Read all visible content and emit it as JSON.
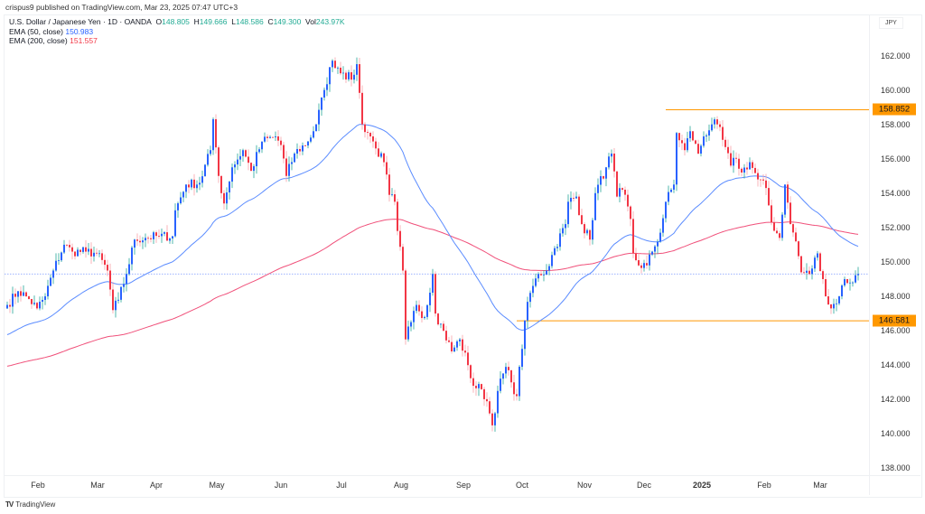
{
  "header": {
    "published": "crispus9 published on TradingView.com, Mar 23, 2025 07:47 UTC+3"
  },
  "legend": {
    "symbol": "U.S. Dollar / Japanese Yen · 1D · OANDA",
    "o_label": "O",
    "o": "148.805",
    "h_label": "H",
    "h": "149.666",
    "l_label": "L",
    "l": "148.586",
    "c_label": "C",
    "c": "149.300",
    "vol_label": "Vol",
    "vol": "243.97K",
    "ema50_label": "EMA (50, close)",
    "ema50": "150.983",
    "ema200_label": "EMA (200, close)",
    "ema200": "151.557"
  },
  "currency": "JPY",
  "brand": "TradingView",
  "colors": {
    "up": "#2962ff",
    "up_wick": "#26a69a",
    "down": "#f23645",
    "down_wick": "#f7a1a9",
    "ema50": "#5b8cff",
    "ema200": "#f0507a",
    "level": "#ff9800"
  },
  "chart_data": {
    "type": "candlestick",
    "title": "U.S. Dollar / Japanese Yen · 1D · OANDA",
    "ylim": [
      137,
      163.5
    ],
    "yticks": [
      "162.000",
      "160.000",
      "158.000",
      "156.000",
      "154.000",
      "152.000",
      "150.000",
      "148.000",
      "146.000",
      "144.000",
      "142.000",
      "140.000",
      "138.000"
    ],
    "ytick_values": [
      162,
      160,
      158,
      156,
      154,
      152,
      150,
      148,
      146,
      144,
      142,
      140,
      138
    ],
    "xticks": [
      "Feb",
      "Mar",
      "Apr",
      "May",
      "Jun",
      "Jul",
      "Aug",
      "Sep",
      "Oct",
      "Nov",
      "Dec",
      "2025",
      "Feb",
      "Mar"
    ],
    "bar_count": 315,
    "close_anchors": [
      [
        0,
        147.5
      ],
      [
        4,
        148.3
      ],
      [
        7,
        148.0
      ],
      [
        11,
        147.3
      ],
      [
        14,
        148.0
      ],
      [
        17,
        149.5
      ],
      [
        21,
        151.0
      ],
      [
        24,
        150.6
      ],
      [
        29,
        150.6
      ],
      [
        33,
        150.5
      ],
      [
        37,
        149.5
      ],
      [
        39,
        147.2
      ],
      [
        41,
        147.8
      ],
      [
        44,
        149.3
      ],
      [
        47,
        151.3
      ],
      [
        51,
        151.4
      ],
      [
        56,
        151.5
      ],
      [
        61,
        151.5
      ],
      [
        62,
        153.0
      ],
      [
        66,
        154.5
      ],
      [
        71,
        154.6
      ],
      [
        75,
        156.5
      ],
      [
        76,
        158.3
      ],
      [
        78,
        155.0
      ],
      [
        80,
        153.4
      ],
      [
        83,
        155.5
      ],
      [
        87,
        156.5
      ],
      [
        90,
        155.3
      ],
      [
        94,
        157.0
      ],
      [
        99,
        157.3
      ],
      [
        101,
        156.8
      ],
      [
        103,
        155.0
      ],
      [
        106,
        156.3
      ],
      [
        111,
        157.0
      ],
      [
        114,
        158.0
      ],
      [
        117,
        160.0
      ],
      [
        120,
        161.7
      ],
      [
        124,
        161.0
      ],
      [
        127,
        160.6
      ],
      [
        129,
        161.5
      ],
      [
        131,
        158.0
      ],
      [
        134,
        157.3
      ],
      [
        136,
        156.6
      ],
      [
        139,
        155.8
      ],
      [
        141,
        153.9
      ],
      [
        143,
        153.5
      ],
      [
        144,
        151.8
      ],
      [
        146,
        149.5
      ],
      [
        147,
        145.5
      ],
      [
        149,
        146.5
      ],
      [
        151,
        147.5
      ],
      [
        154,
        146.8
      ],
      [
        157,
        149.3
      ],
      [
        158,
        147.0
      ],
      [
        161,
        146.0
      ],
      [
        164,
        144.8
      ],
      [
        167,
        145.5
      ],
      [
        170,
        144.0
      ],
      [
        172,
        142.8
      ],
      [
        175,
        142.6
      ],
      [
        177,
        141.9
      ],
      [
        179,
        140.5
      ],
      [
        181,
        142.5
      ],
      [
        184,
        143.9
      ],
      [
        186,
        143.0
      ],
      [
        188,
        142.2
      ],
      [
        191,
        146.6
      ],
      [
        193,
        148.2
      ],
      [
        196,
        149.3
      ],
      [
        199,
        149.5
      ],
      [
        202,
        150.8
      ],
      [
        206,
        152.2
      ],
      [
        207,
        153.5
      ],
      [
        210,
        153.8
      ],
      [
        212,
        152.2
      ],
      [
        215,
        151.3
      ],
      [
        217,
        154.0
      ],
      [
        221,
        155.5
      ],
      [
        223,
        156.3
      ],
      [
        225,
        153.8
      ],
      [
        227,
        154.2
      ],
      [
        230,
        152.5
      ],
      [
        231,
        150.5
      ],
      [
        233,
        149.8
      ],
      [
        236,
        149.8
      ],
      [
        238,
        150.6
      ],
      [
        241,
        151.7
      ],
      [
        243,
        153.5
      ],
      [
        246,
        154.5
      ],
      [
        247,
        157.5
      ],
      [
        250,
        156.5
      ],
      [
        252,
        157.6
      ],
      [
        255,
        156.3
      ],
      [
        257,
        157.3
      ],
      [
        260,
        158.0
      ],
      [
        262,
        158.0
      ],
      [
        264,
        157.1
      ],
      [
        267,
        155.6
      ],
      [
        269,
        156.0
      ],
      [
        271,
        155.2
      ],
      [
        274,
        155.8
      ],
      [
        277,
        154.8
      ],
      [
        280,
        154.3
      ],
      [
        282,
        152.3
      ],
      [
        285,
        151.4
      ],
      [
        287,
        154.5
      ],
      [
        289,
        152.2
      ],
      [
        291,
        151.2
      ],
      [
        293,
        149.4
      ],
      [
        296,
        149.3
      ],
      [
        299,
        150.5
      ],
      [
        301,
        149.0
      ],
      [
        302,
        148.0
      ],
      [
        304,
        147.3
      ],
      [
        307,
        148.0
      ],
      [
        309,
        149.0
      ],
      [
        311,
        148.8
      ],
      [
        314,
        149.3
      ]
    ],
    "ema50_start": 145.7,
    "ema200_start": 143.9,
    "last_price": 149.3,
    "levels": [
      {
        "label": "158.852",
        "value": 158.852,
        "from_bar": 243
      },
      {
        "label": "146.581",
        "value": 146.581,
        "from_bar": 188
      }
    ]
  }
}
